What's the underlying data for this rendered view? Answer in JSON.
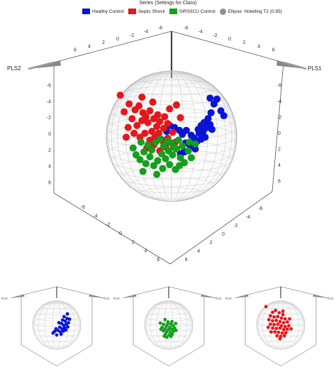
{
  "legend": {
    "title": "Series (Settings for Class)",
    "items": [
      {
        "label": "Healthy Control",
        "color": "#0a14d8",
        "shape": "square"
      },
      {
        "label": "Septic Shock",
        "color": "#e8161a",
        "shape": "square"
      },
      {
        "label": "SIRS/ICU Control",
        "color": "#14a01c",
        "shape": "square"
      },
      {
        "label": "Ellipse: Hotelling T2 (0.95)",
        "color": "#909090",
        "shape": "circle"
      }
    ]
  },
  "chart_data": [
    {
      "type": "scatter",
      "title": "",
      "axes": {
        "x": "PLS1",
        "y": "PLS2"
      },
      "top_ticks_left": [
        "6",
        "4",
        "2",
        "0",
        "-2",
        "-4",
        "-6"
      ],
      "top_ticks_right": [
        "-6",
        "-4",
        "-2",
        "0",
        "2",
        "4",
        "6"
      ],
      "left_ticks": [
        "-6",
        "-4",
        "-2",
        "0",
        "2",
        "4",
        "6"
      ],
      "right_ticks": [
        "-6",
        "-4",
        "-2",
        "0",
        "2",
        "4",
        "6"
      ],
      "bottom_left_ticks": [
        "-6",
        "-4",
        "-2",
        "0",
        "2",
        "4",
        "6"
      ],
      "bottom_right_ticks": [
        "6",
        "4",
        "2",
        "0",
        "-2",
        "-4",
        "-6"
      ],
      "series": [
        {
          "name": "Healthy Control",
          "color": "#0a14d8",
          "points": [
            [
              3.9,
              3.9
            ],
            [
              4.3,
              3.3
            ],
            [
              4.6,
              3.8
            ],
            [
              5.0,
              2.6
            ],
            [
              5.3,
              2.1
            ],
            [
              4.0,
              2.4
            ],
            [
              3.7,
              1.8
            ],
            [
              3.3,
              1.4
            ],
            [
              3.0,
              1.1
            ],
            [
              2.7,
              0.7
            ],
            [
              2.8,
              0.3
            ],
            [
              3.2,
              0.5
            ],
            [
              3.6,
              0.9
            ],
            [
              3.9,
              1.2
            ],
            [
              4.1,
              0.7
            ],
            [
              3.4,
              -0.1
            ],
            [
              3.0,
              -0.3
            ],
            [
              2.6,
              -0.5
            ],
            [
              2.3,
              -0.2
            ],
            [
              2.0,
              0.1
            ],
            [
              1.5,
              0.6
            ],
            [
              1.1,
              0.2
            ],
            [
              0.8,
              0.6
            ],
            [
              0.3,
              0.9
            ],
            [
              -0.2,
              1.1
            ],
            [
              -1.1,
              -0.3
            ],
            [
              -0.5,
              0.5
            ],
            [
              1.4,
              -0.7
            ],
            [
              1.9,
              -1.0
            ],
            [
              2.4,
              -1.3
            ],
            [
              0.9,
              -1.8
            ],
            [
              1.3,
              -1.6
            ]
          ]
        },
        {
          "name": "Septic Shock",
          "color": "#e8161a",
          "points": [
            [
              -5.2,
              4.2
            ],
            [
              -4.8,
              2.5
            ],
            [
              -4.3,
              3.3
            ],
            [
              -3.7,
              2.7
            ],
            [
              -3.3,
              3.1
            ],
            [
              -2.9,
              2.4
            ],
            [
              -2.6,
              2.0
            ],
            [
              -2.2,
              2.6
            ],
            [
              -1.8,
              1.8
            ],
            [
              -1.4,
              2.2
            ],
            [
              -1.2,
              1.5
            ],
            [
              -0.7,
              2.0
            ],
            [
              -0.4,
              1.3
            ],
            [
              -0.8,
              0.8
            ],
            [
              -1.5,
              1.0
            ],
            [
              -2.0,
              0.5
            ],
            [
              -2.4,
              1.4
            ],
            [
              -3.0,
              1.6
            ],
            [
              -3.5,
              1.1
            ],
            [
              -4.0,
              1.8
            ],
            [
              -4.4,
              0.9
            ],
            [
              -3.8,
              0.3
            ],
            [
              -3.2,
              -0.1
            ],
            [
              -2.7,
              0.3
            ],
            [
              -2.2,
              -0.4
            ],
            [
              -1.7,
              -0.1
            ],
            [
              -1.3,
              0.3
            ],
            [
              -0.9,
              -0.5
            ],
            [
              -0.4,
              -0.2
            ],
            [
              0.1,
              0.4
            ],
            [
              0.4,
              -0.6
            ],
            [
              -1.8,
              -0.9
            ],
            [
              -2.5,
              -1.2
            ],
            [
              -1.2,
              -1.5
            ],
            [
              -0.6,
              -1.1
            ],
            [
              0.5,
              3.2
            ],
            [
              -3.0,
              4.0
            ],
            [
              -1.9,
              3.5
            ],
            [
              -4.6,
              -0.1
            ],
            [
              0.9,
              1.9
            ],
            [
              -0.2,
              2.8
            ]
          ]
        },
        {
          "name": "SIRS/ICU Control",
          "color": "#14a01c",
          "points": [
            [
              -3.6,
              -1.9
            ],
            [
              -3.2,
              -2.4
            ],
            [
              -2.8,
              -1.6
            ],
            [
              -2.6,
              -2.8
            ],
            [
              -2.2,
              -2.1
            ],
            [
              -1.8,
              -3.0
            ],
            [
              -1.4,
              -2.5
            ],
            [
              -1.0,
              -1.8
            ],
            [
              -0.6,
              -2.3
            ],
            [
              -0.3,
              -1.5
            ],
            [
              0.1,
              -1.9
            ],
            [
              0.5,
              -1.3
            ],
            [
              0.9,
              -2.2
            ],
            [
              1.3,
              -2.7
            ],
            [
              1.7,
              -1.5
            ],
            [
              2.0,
              -2.2
            ],
            [
              -0.9,
              -3.3
            ],
            [
              -0.2,
              -2.9
            ],
            [
              0.4,
              -3.4
            ],
            [
              -2.4,
              -0.9
            ],
            [
              -1.6,
              -0.6
            ],
            [
              -0.8,
              -1.0
            ],
            [
              0.0,
              -0.7
            ],
            [
              0.7,
              -0.4
            ],
            [
              1.1,
              -1.0
            ],
            [
              -3.1,
              -0.6
            ],
            [
              -2.0,
              -1.4
            ],
            [
              -1.2,
              -0.3
            ],
            [
              -0.4,
              -0.5
            ],
            [
              0.2,
              -1.1
            ],
            [
              -2.9,
              -3.6
            ],
            [
              -1.5,
              -3.9
            ],
            [
              2.4,
              -0.8
            ],
            [
              1.8,
              -0.6
            ],
            [
              -3.9,
              -1.2
            ],
            [
              0.8,
              -3.0
            ]
          ]
        }
      ]
    },
    {
      "type": "scatter",
      "title": "",
      "axes": {
        "x": "PLS1",
        "y": "PLS2"
      },
      "series": [
        {
          "name": "Healthy Control",
          "color": "#0a14d8",
          "points": [
            [
              2.0,
              2.2
            ],
            [
              2.8,
              1.7
            ],
            [
              2.3,
              1.0
            ],
            [
              1.6,
              1.3
            ],
            [
              3.2,
              0.6
            ],
            [
              2.6,
              0.2
            ],
            [
              1.9,
              -0.1
            ],
            [
              1.3,
              0.4
            ],
            [
              3.0,
              -0.5
            ],
            [
              2.2,
              -0.8
            ],
            [
              1.5,
              -1.0
            ],
            [
              0.8,
              -0.6
            ],
            [
              0.3,
              -1.4
            ],
            [
              -0.2,
              -1.0
            ],
            [
              1.0,
              -1.8
            ],
            [
              1.8,
              -1.6
            ],
            [
              2.5,
              -1.3
            ],
            [
              -0.6,
              -1.7
            ],
            [
              0.6,
              0.6
            ],
            [
              3.5,
              1.5
            ],
            [
              2.9,
              2.9
            ],
            [
              1.2,
              -2.4
            ],
            [
              -1.0,
              -2.1
            ],
            [
              0.0,
              -2.6
            ]
          ]
        }
      ]
    },
    {
      "type": "scatter",
      "title": "",
      "axes": {
        "x": "PLS1",
        "y": "PLS2"
      },
      "series": [
        {
          "name": "SIRS/ICU Control",
          "color": "#14a01c",
          "points": [
            [
              -1.0,
              1.4
            ],
            [
              -0.2,
              0.8
            ],
            [
              0.6,
              0.3
            ],
            [
              -1.4,
              0.2
            ],
            [
              -0.6,
              -0.3
            ],
            [
              0.3,
              -0.6
            ],
            [
              1.2,
              -0.2
            ],
            [
              -1.8,
              -0.6
            ],
            [
              -1.0,
              -1.0
            ],
            [
              -0.1,
              -1.2
            ],
            [
              0.8,
              -1.1
            ],
            [
              1.6,
              -0.8
            ],
            [
              -1.5,
              -1.5
            ],
            [
              -0.6,
              -1.8
            ],
            [
              0.4,
              -1.9
            ],
            [
              1.3,
              -1.6
            ],
            [
              -2.1,
              -1.1
            ],
            [
              2.0,
              -1.4
            ],
            [
              -0.9,
              -2.4
            ],
            [
              0.1,
              -2.6
            ],
            [
              1.0,
              -2.4
            ],
            [
              -0.3,
              0.2
            ],
            [
              0.9,
              0.9
            ],
            [
              -2.3,
              0.5
            ],
            [
              1.9,
              0.4
            ],
            [
              -1.2,
              -2.9
            ],
            [
              0.6,
              -3.0
            ],
            [
              -0.5,
              -3.2
            ]
          ]
        }
      ]
    },
    {
      "type": "scatter",
      "title": "",
      "axes": {
        "x": "PLS1",
        "y": "PLS2"
      },
      "series": [
        {
          "name": "Septic Shock",
          "color": "#e8161a",
          "points": [
            [
              -4.0,
              4.8
            ],
            [
              -2.2,
              3.3
            ],
            [
              -1.4,
              3.8
            ],
            [
              -0.4,
              3.2
            ],
            [
              0.6,
              2.7
            ],
            [
              -2.8,
              2.4
            ],
            [
              -1.8,
              2.1
            ],
            [
              -0.8,
              2.2
            ],
            [
              0.2,
              1.8
            ],
            [
              1.2,
              1.6
            ],
            [
              -3.2,
              1.4
            ],
            [
              -2.2,
              1.1
            ],
            [
              -1.2,
              1.2
            ],
            [
              -0.2,
              0.9
            ],
            [
              0.8,
              0.6
            ],
            [
              1.8,
              0.8
            ],
            [
              -2.8,
              0.2
            ],
            [
              -1.8,
              0.1
            ],
            [
              -0.8,
              0.2
            ],
            [
              0.2,
              -0.2
            ],
            [
              1.2,
              -0.4
            ],
            [
              2.2,
              -0.2
            ],
            [
              -2.2,
              -0.8
            ],
            [
              -1.2,
              -0.9
            ],
            [
              -0.2,
              -0.8
            ],
            [
              0.8,
              -1.2
            ],
            [
              1.8,
              -1.1
            ],
            [
              -1.6,
              -1.8
            ],
            [
              -0.6,
              -1.9
            ],
            [
              0.4,
              -2.1
            ],
            [
              1.4,
              -2.0
            ],
            [
              -1.0,
              -2.8
            ],
            [
              0.0,
              -3.0
            ],
            [
              1.0,
              -2.8
            ],
            [
              2.4,
              1.6
            ],
            [
              -3.4,
              -0.6
            ],
            [
              -0.2,
              -3.6
            ],
            [
              2.8,
              -1.0
            ],
            [
              0.6,
              3.6
            ],
            [
              -2.6,
              -1.8
            ]
          ]
        }
      ]
    }
  ]
}
